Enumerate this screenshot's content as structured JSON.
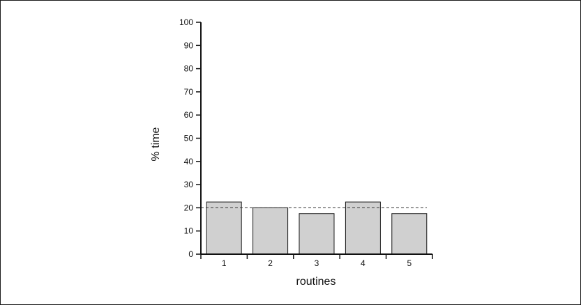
{
  "chart_data": {
    "type": "bar",
    "title": "",
    "xlabel": "routines",
    "ylabel": "% time",
    "categories": [
      "1",
      "2",
      "3",
      "4",
      "5"
    ],
    "values": [
      22.5,
      20,
      17.5,
      22.5,
      17.5
    ],
    "ylim": [
      0,
      100
    ],
    "yticks": [
      "0",
      "10",
      "20",
      "30",
      "40",
      "50",
      "60",
      "70",
      "80",
      "90",
      "100"
    ],
    "reference_line": {
      "value": 20,
      "style": "dashed"
    },
    "bar_color": "#d0d0d0",
    "bar_stroke": "#1a1a1a",
    "grid": false,
    "legend": "none"
  }
}
